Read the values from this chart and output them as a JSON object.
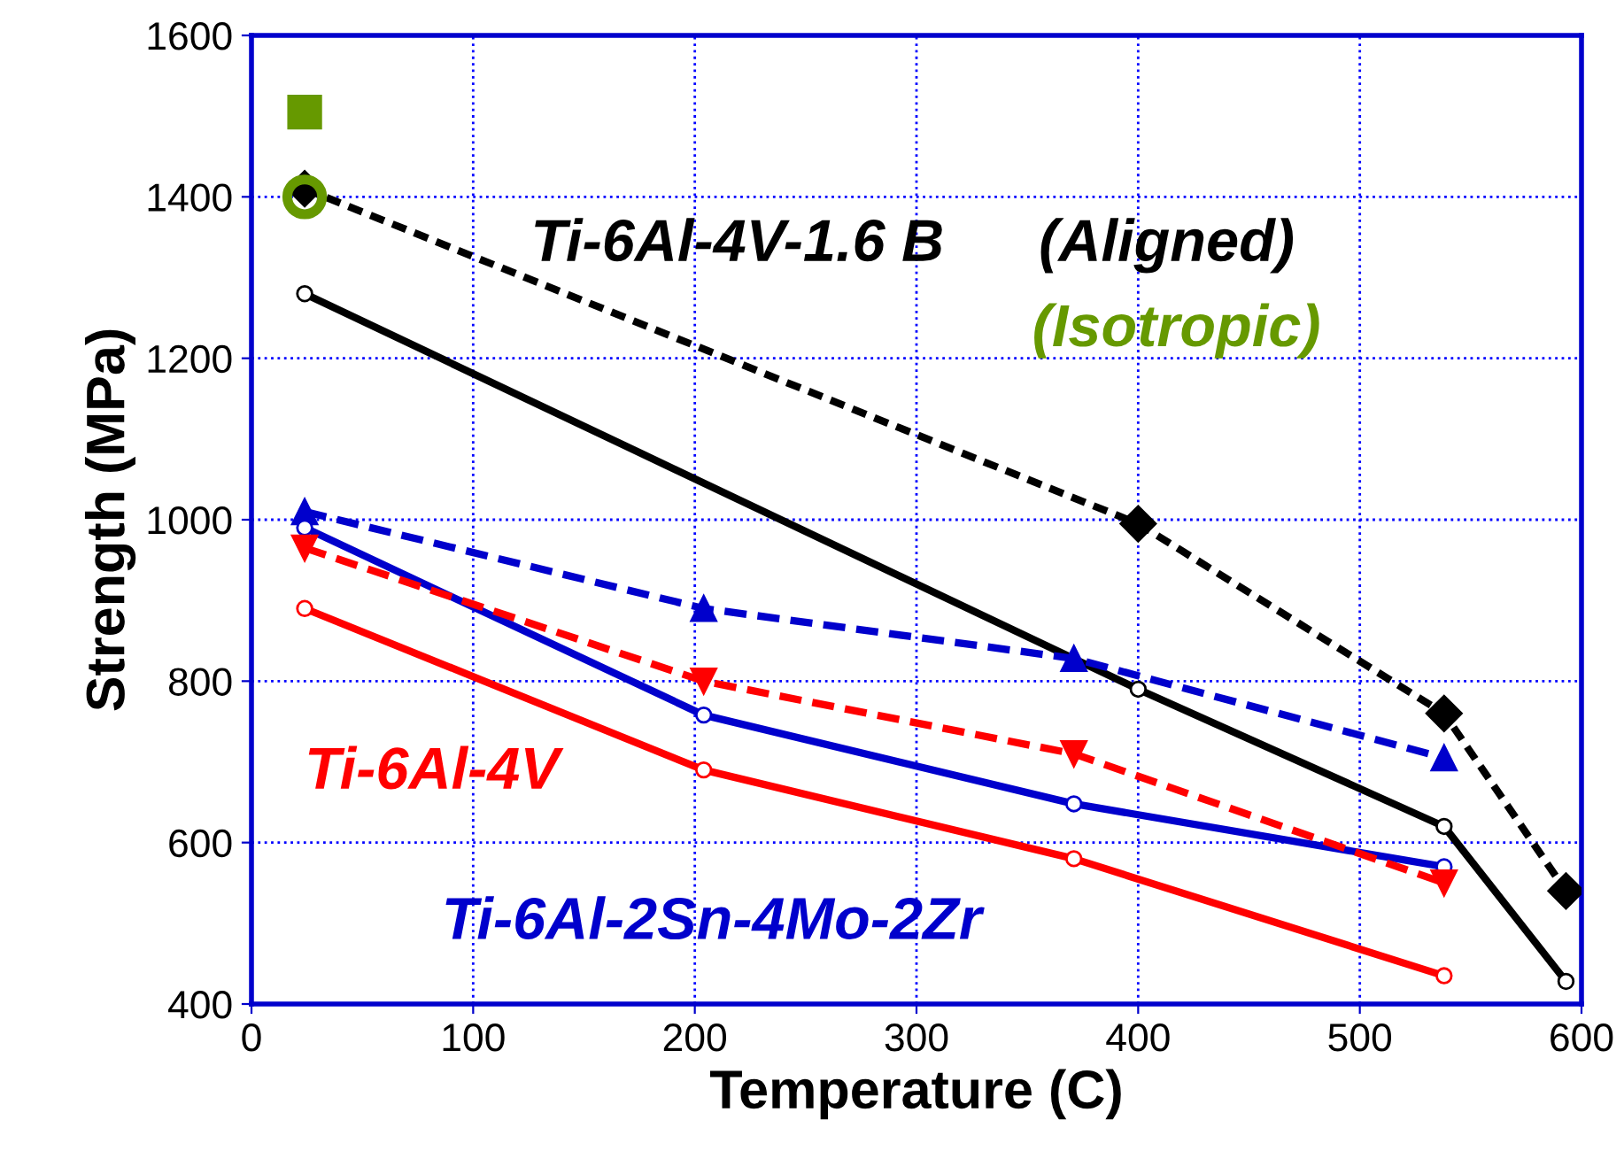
{
  "chart_data": {
    "type": "line",
    "xlabel": "Temperature (C)",
    "ylabel": "Strength (MPa)",
    "xlim": [
      0,
      600
    ],
    "ylim": [
      400,
      1600
    ],
    "xticks": [
      0,
      100,
      200,
      300,
      400,
      500,
      600
    ],
    "yticks": [
      400,
      600,
      800,
      1000,
      1200,
      1400,
      1600
    ],
    "grid": true,
    "legend": false,
    "series": [
      {
        "name": "Ti-6Al-4V-1.6 B",
        "x": [
          24,
          400,
          538,
          593
        ],
        "values": [
          1410,
          995,
          760,
          540
        ],
        "color": "#000000",
        "marker": "diamond",
        "line_style": "dotted"
      },
      {
        "x": [
          24,
          400,
          538,
          593
        ],
        "values": [
          1280,
          790,
          620,
          428
        ],
        "color": "#000000",
        "marker": "circle",
        "line_style": "solid"
      },
      {
        "name": "Ti-6Al-2Sn-4Mo-2Zr",
        "x": [
          24,
          204,
          371,
          538
        ],
        "values": [
          1010,
          890,
          828,
          705
        ],
        "color": "#0000cc",
        "marker": "triangle",
        "line_style": "dashed"
      },
      {
        "x": [
          24,
          204,
          371,
          538
        ],
        "values": [
          990,
          758,
          648,
          570
        ],
        "color": "#0000cc",
        "marker": "circle",
        "line_style": "solid"
      },
      {
        "name": "Ti-6Al-4V",
        "x": [
          24,
          204,
          371,
          538
        ],
        "values": [
          965,
          800,
          710,
          550
        ],
        "color": "#ff0000",
        "marker": "triangle_down",
        "line_style": "dashed"
      },
      {
        "x": [
          24,
          204,
          371,
          538
        ],
        "values": [
          890,
          690,
          580,
          435
        ],
        "color": "#ff0000",
        "marker": "circle",
        "line_style": "solid"
      },
      {
        "name": "(Isotropic)",
        "type": "scatter",
        "x": [
          24
        ],
        "values": [
          1505
        ],
        "color": "#669900",
        "marker": "square"
      },
      {
        "type": "scatter",
        "x": [
          24
        ],
        "values": [
          1400
        ],
        "color": "#669900",
        "marker": "circle"
      }
    ],
    "annotations": [
      "(Aligned)"
    ]
  }
}
